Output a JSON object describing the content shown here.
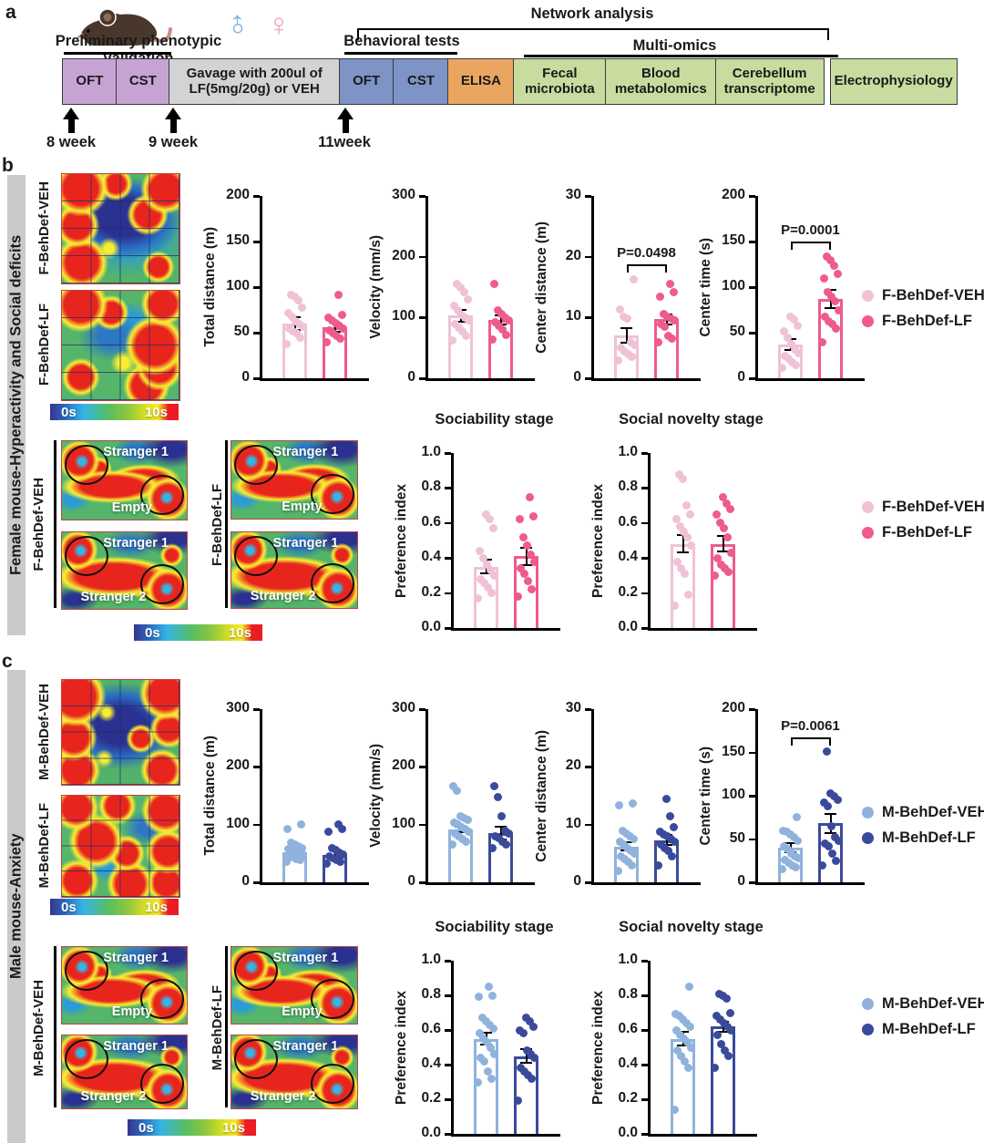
{
  "figure": {
    "scale": {
      "min": "0s",
      "max": "10s"
    }
  },
  "panel_a": {
    "label": "a",
    "male_symbol": "♂",
    "female_symbol": "♀",
    "titles": {
      "preliminary": "Preliminary phenotypic validation",
      "behavioral": "Behavioral tests",
      "network": "Network analysis",
      "multiomics": "Multi-omics"
    },
    "boxes": [
      {
        "label": "OFT",
        "color": "#C7A3D4"
      },
      {
        "label": "CST",
        "color": "#C7A3D4"
      },
      {
        "label": "Gavage with 200ul of LF(5mg/20g) or VEH",
        "color": "#D2D3D4"
      },
      {
        "label": "OFT",
        "color": "#7E93C6"
      },
      {
        "label": "CST",
        "color": "#7E93C6"
      },
      {
        "label": "ELISA",
        "color": "#EAA661"
      },
      {
        "label": "Fecal microbiota",
        "color": "#C8DC9F"
      },
      {
        "label": "Blood metabolomics",
        "color": "#C8DC9F"
      },
      {
        "label": "Cerebellum transcriptome",
        "color": "#C8DC9F"
      },
      {
        "label": "Electrophysiology",
        "color": "#C8DC9F"
      }
    ],
    "timepoints": [
      {
        "label": "8 week"
      },
      {
        "label": "9 week"
      },
      {
        "label": "11week"
      }
    ]
  },
  "panel_b": {
    "label": "b",
    "sidebar": "Female mouse-Hyperactivity and Social deficits",
    "oft_maps": [
      {
        "label": "F-BehDef-VEH"
      },
      {
        "label": "F-BehDef-LF"
      }
    ],
    "legend": [
      {
        "label": "F-BehDef-VEH",
        "color": "#F0C2D5"
      },
      {
        "label": "F-BehDef-LF",
        "color": "#EE5B8D"
      }
    ],
    "soc_groups": [
      {
        "label": "F-BehDef-VEH",
        "maps": [
          {
            "zone_top": "Stranger 1",
            "zone_bottom": "Empty"
          },
          {
            "zone_top": "Stranger 1",
            "zone_bottom": "Stranger 2"
          }
        ]
      },
      {
        "label": "F-BehDef-LF",
        "maps": [
          {
            "zone_top": "Stranger 1",
            "zone_bottom": "Empty"
          },
          {
            "zone_top": "Stranger 1",
            "zone_bottom": "Stranger 2"
          }
        ]
      }
    ],
    "charts": {
      "total_distance": {
        "type": "bar",
        "ylabel": "Total distance (m)",
        "ymax": 200,
        "yticks": [
          0,
          50,
          100,
          150,
          200
        ],
        "groups": [
          {
            "name": "F-BehDef-VEH",
            "color": "#F0C2D5",
            "mean": 60,
            "sem": 7,
            "points": [
              38,
              45,
              50,
              52,
              55,
              57,
              60,
              63,
              68,
              72,
              78,
              86,
              90,
              92
            ]
          },
          {
            "name": "F-BehDef-LF",
            "color": "#EE5B8D",
            "mean": 56,
            "sem": 5,
            "points": [
              40,
              44,
              47,
              50,
              53,
              55,
              58,
              61,
              64,
              67,
              70,
              92
            ]
          }
        ]
      },
      "velocity": {
        "type": "bar",
        "ylabel": "Velocity (mm/s)",
        "ymax": 300,
        "yticks": [
          0,
          100,
          200,
          300
        ],
        "groups": [
          {
            "name": "F-BehDef-VEH",
            "color": "#F0C2D5",
            "mean": 103,
            "sem": 10,
            "points": [
              62,
              70,
              78,
              84,
              90,
              95,
              100,
              105,
              112,
              120,
              130,
              142,
              150,
              155
            ]
          },
          {
            "name": "F-BehDef-LF",
            "color": "#EE5B8D",
            "mean": 96,
            "sem": 8,
            "points": [
              64,
              72,
              80,
              86,
              92,
              96,
              100,
              106,
              112,
              155
            ]
          }
        ]
      },
      "center_distance": {
        "type": "bar",
        "ylabel": "Center distance (m)",
        "ymax": 30,
        "yticks": [
          0,
          10,
          20,
          30
        ],
        "p": "P=0.0498",
        "groups": [
          {
            "name": "F-BehDef-VEH",
            "color": "#F0C2D5",
            "mean": 7,
            "sem": 1.2,
            "points": [
              3,
              3.5,
              4,
              4.5,
              5,
              5.5,
              6,
              9.8,
              10.2,
              11.3,
              16.3
            ]
          },
          {
            "name": "F-BehDef-LF",
            "color": "#EE5B8D",
            "mean": 9.7,
            "sem": 0.8,
            "points": [
              6,
              6.5,
              7,
              8.5,
              9,
              9.5,
              9.8,
              10.2,
              10.6,
              13.5,
              14.2,
              15.5
            ]
          }
        ]
      },
      "center_time": {
        "type": "bar",
        "ylabel": "Center time (s)",
        "ymax": 200,
        "yticks": [
          0,
          50,
          100,
          150,
          200
        ],
        "p": "P=0.0001",
        "groups": [
          {
            "name": "F-BehDef-VEH",
            "color": "#F0C2D5",
            "mean": 37,
            "sem": 6,
            "points": [
              12,
              15,
              18,
              22,
              25,
              28,
              32,
              38,
              45,
              52,
              58,
              65,
              68
            ]
          },
          {
            "name": "F-BehDef-LF",
            "color": "#EE5B8D",
            "mean": 87,
            "sem": 10,
            "points": [
              40,
              55,
              60,
              63,
              68,
              75,
              85,
              90,
              95,
              110,
              115,
              124,
              130,
              134
            ]
          }
        ]
      },
      "sociability": {
        "type": "bar",
        "title": "Sociability stage",
        "ylabel": "Preference index",
        "ymax": 1.0,
        "yticks": [
          0,
          0.2,
          0.4,
          0.6,
          0.8,
          1.0
        ],
        "groups": [
          {
            "name": "F-BehDef-VEH",
            "color": "#F0C2D5",
            "mean": 0.35,
            "sem": 0.04,
            "points": [
              0.17,
              0.2,
              0.23,
              0.26,
              0.28,
              0.3,
              0.33,
              0.36,
              0.4,
              0.44,
              0.57,
              0.62,
              0.65
            ]
          },
          {
            "name": "F-BehDef-LF",
            "color": "#EE5B8D",
            "mean": 0.41,
            "sem": 0.05,
            "points": [
              0.18,
              0.22,
              0.27,
              0.31,
              0.34,
              0.38,
              0.42,
              0.47,
              0.52,
              0.62,
              0.64,
              0.75
            ]
          }
        ]
      },
      "social_novelty": {
        "type": "bar",
        "title": "Social novelty stage",
        "ylabel": "Preference index",
        "ymax": 1.0,
        "yticks": [
          0,
          0.2,
          0.4,
          0.6,
          0.8,
          1.0
        ],
        "groups": [
          {
            "name": "F-BehDef-VEH",
            "color": "#F0C2D5",
            "mean": 0.48,
            "sem": 0.05,
            "points": [
              0.13,
              0.19,
              0.31,
              0.34,
              0.38,
              0.47,
              0.52,
              0.55,
              0.58,
              0.62,
              0.65,
              0.7,
              0.85,
              0.88
            ]
          },
          {
            "name": "F-BehDef-LF",
            "color": "#EE5B8D",
            "mean": 0.48,
            "sem": 0.045,
            "points": [
              0.3,
              0.32,
              0.34,
              0.36,
              0.4,
              0.43,
              0.52,
              0.57,
              0.6,
              0.65,
              0.68,
              0.71,
              0.75
            ]
          }
        ]
      }
    }
  },
  "panel_c": {
    "label": "c",
    "sidebar": "Male mouse-Anxiety",
    "oft_maps": [
      {
        "label": "M-BehDef-VEH"
      },
      {
        "label": "M-BehDef-LF"
      }
    ],
    "legend": [
      {
        "label": "M-BehDef-VEH",
        "color": "#8FB3DD"
      },
      {
        "label": "M-BehDef-LF",
        "color": "#3A4A9B"
      }
    ],
    "soc_groups": [
      {
        "label": "M-BehDef-VEH",
        "maps": [
          {
            "zone_top": "Stranger 1",
            "zone_bottom": "Empty"
          },
          {
            "zone_top": "Stranger 1",
            "zone_bottom": "Stranger 2"
          }
        ]
      },
      {
        "label": "M-BehDef-LF",
        "maps": [
          {
            "zone_top": "Stranger 1",
            "zone_bottom": "Empty"
          },
          {
            "zone_top": "Stranger 1",
            "zone_bottom": "Stranger 2"
          }
        ]
      }
    ],
    "charts": {
      "total_distance": {
        "type": "bar",
        "ylabel": "Total distance (m)",
        "ymax": 300,
        "yticks": [
          0,
          100,
          200,
          300
        ],
        "groups": [
          {
            "name": "M-BehDef-VEH",
            "color": "#8FB3DD",
            "mean": 52,
            "sem": 4,
            "points": [
              35,
              38,
              40,
              43,
              45,
              48,
              50,
              52,
              55,
              57,
              60,
              62,
              65,
              68,
              93,
              100
            ]
          },
          {
            "name": "M-BehDef-LF",
            "color": "#3A4A9B",
            "mean": 48,
            "sem": 7,
            "points": [
              32,
              35,
              38,
              42,
              45,
              48,
              52,
              56,
              60,
              88,
              92,
              100
            ]
          }
        ]
      },
      "velocity": {
        "type": "bar",
        "ylabel": "Velocity (mm/s)",
        "ymax": 300,
        "yticks": [
          0,
          100,
          200,
          300
        ],
        "groups": [
          {
            "name": "M-BehDef-VEH",
            "color": "#8FB3DD",
            "mean": 92,
            "sem": 5,
            "points": [
              65,
              70,
              75,
              80,
              85,
              88,
              92,
              96,
              100,
              104,
              108,
              112,
              115,
              158,
              167
            ]
          },
          {
            "name": "M-BehDef-LF",
            "color": "#3A4A9B",
            "mean": 86,
            "sem": 11,
            "points": [
              60,
              65,
              70,
              76,
              80,
              85,
              90,
              115,
              147,
              167
            ]
          }
        ]
      },
      "center_distance": {
        "type": "bar",
        "ylabel": "Center distance (m)",
        "ymax": 30,
        "yticks": [
          0,
          10,
          20,
          30
        ],
        "groups": [
          {
            "name": "M-BehDef-VEH",
            "color": "#8FB3DD",
            "mean": 6.2,
            "sem": 0.7,
            "points": [
              2,
              3,
              3.5,
              4,
              4.5,
              5,
              5.5,
              6,
              6.5,
              7,
              7.5,
              8,
              8.5,
              9,
              13.4,
              13.7
            ]
          },
          {
            "name": "M-BehDef-LF",
            "color": "#3A4A9B",
            "mean": 7.3,
            "sem": 0.9,
            "points": [
              3,
              4.5,
              5.5,
              6,
              6.5,
              7,
              7.5,
              8,
              8.3,
              8.8,
              9.5,
              11.5,
              14.5
            ]
          }
        ]
      },
      "center_time": {
        "type": "bar",
        "ylabel": "Center time (s)",
        "ymax": 200,
        "yticks": [
          0,
          50,
          100,
          150,
          200
        ],
        "p": "P=0.0061",
        "groups": [
          {
            "name": "M-BehDef-VEH",
            "color": "#8FB3DD",
            "mean": 40,
            "sem": 5,
            "points": [
              15,
              17,
              20,
              23,
              26,
              28,
              30,
              33,
              38,
              42,
              48,
              52,
              55,
              58,
              60,
              75
            ]
          },
          {
            "name": "M-BehDef-LF",
            "color": "#3A4A9B",
            "mean": 68,
            "sem": 11,
            "points": [
              20,
              25,
              33,
              42,
              45,
              48,
              52,
              65,
              88,
              92,
              95,
              100,
              103,
              151
            ]
          }
        ]
      },
      "sociability": {
        "type": "bar",
        "title": "Sociability stage",
        "ylabel": "Preference index",
        "ymax": 1.0,
        "yticks": [
          0,
          0.2,
          0.4,
          0.6,
          0.8,
          1.0
        ],
        "groups": [
          {
            "name": "M-BehDef-VEH",
            "color": "#8FB3DD",
            "mean": 0.55,
            "sem": 0.035,
            "points": [
              0.3,
              0.32,
              0.36,
              0.42,
              0.44,
              0.46,
              0.5,
              0.53,
              0.55,
              0.58,
              0.61,
              0.63,
              0.65,
              0.67,
              0.79,
              0.8,
              0.85
            ]
          },
          {
            "name": "M-BehDef-LF",
            "color": "#3A4A9B",
            "mean": 0.45,
            "sem": 0.04,
            "points": [
              0.19,
              0.32,
              0.34,
              0.36,
              0.38,
              0.44,
              0.46,
              0.48,
              0.58,
              0.6,
              0.62,
              0.65,
              0.67
            ]
          }
        ]
      },
      "social_novelty": {
        "type": "bar",
        "title": "Social novelty stage",
        "ylabel": "Preference index",
        "ymax": 1.0,
        "yticks": [
          0,
          0.2,
          0.4,
          0.6,
          0.8,
          1.0
        ],
        "groups": [
          {
            "name": "M-BehDef-VEH",
            "color": "#8FB3DD",
            "mean": 0.55,
            "sem": 0.04,
            "points": [
              0.14,
              0.38,
              0.42,
              0.45,
              0.48,
              0.5,
              0.53,
              0.55,
              0.57,
              0.6,
              0.62,
              0.64,
              0.66,
              0.68,
              0.69,
              0.85
            ]
          },
          {
            "name": "M-BehDef-LF",
            "color": "#3A4A9B",
            "mean": 0.62,
            "sem": 0.03,
            "points": [
              0.38,
              0.45,
              0.48,
              0.52,
              0.57,
              0.6,
              0.62,
              0.64,
              0.66,
              0.68,
              0.7,
              0.78,
              0.8,
              0.81
            ]
          }
        ]
      }
    }
  }
}
